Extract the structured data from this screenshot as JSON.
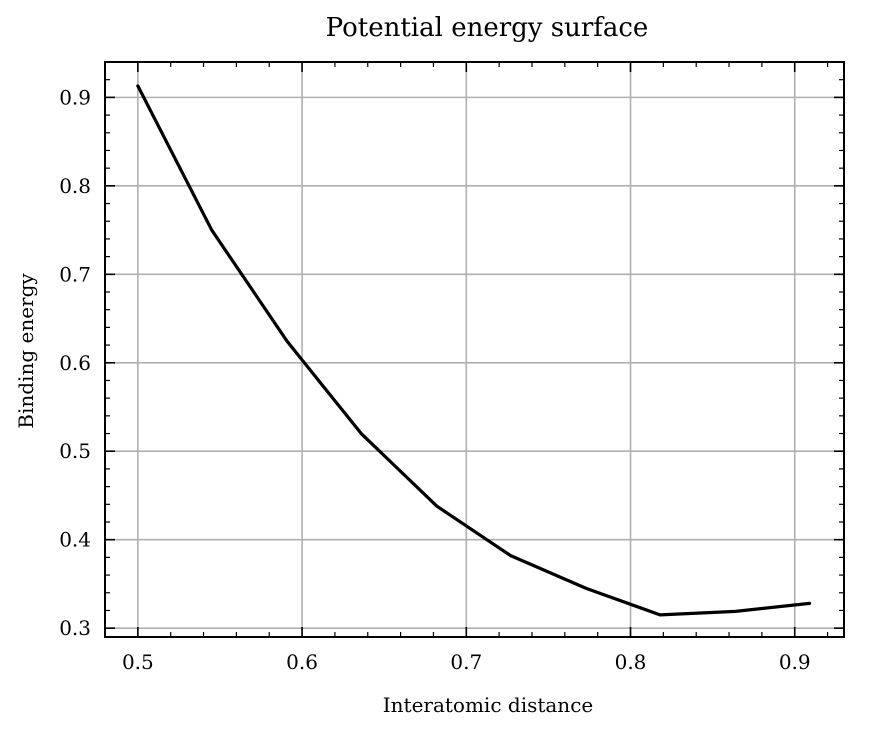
{
  "chart_data": {
    "type": "line",
    "title": "Potential energy surface",
    "xlabel": "Interatomic distance",
    "ylabel": "Binding energy",
    "xlim": [
      0.48,
      0.93
    ],
    "ylim": [
      0.29,
      0.94
    ],
    "x_ticks": [
      0.5,
      0.6,
      0.7,
      0.8,
      0.9
    ],
    "y_ticks": [
      0.3,
      0.4,
      0.5,
      0.6,
      0.7,
      0.8,
      0.9
    ],
    "x_tick_labels": [
      "0.5",
      "0.6",
      "0.7",
      "0.8",
      "0.9"
    ],
    "y_tick_labels": [
      "0.3",
      "0.4",
      "0.5",
      "0.6",
      "0.7",
      "0.8",
      "0.9"
    ],
    "grid": true,
    "series": [
      {
        "color": "#000000",
        "x": [
          0.5,
          0.545,
          0.591,
          0.636,
          0.682,
          0.727,
          0.773,
          0.818,
          0.864,
          0.909
        ],
        "y": [
          0.913,
          0.75,
          0.624,
          0.52,
          0.438,
          0.382,
          0.345,
          0.315,
          0.319,
          0.328
        ]
      }
    ]
  }
}
